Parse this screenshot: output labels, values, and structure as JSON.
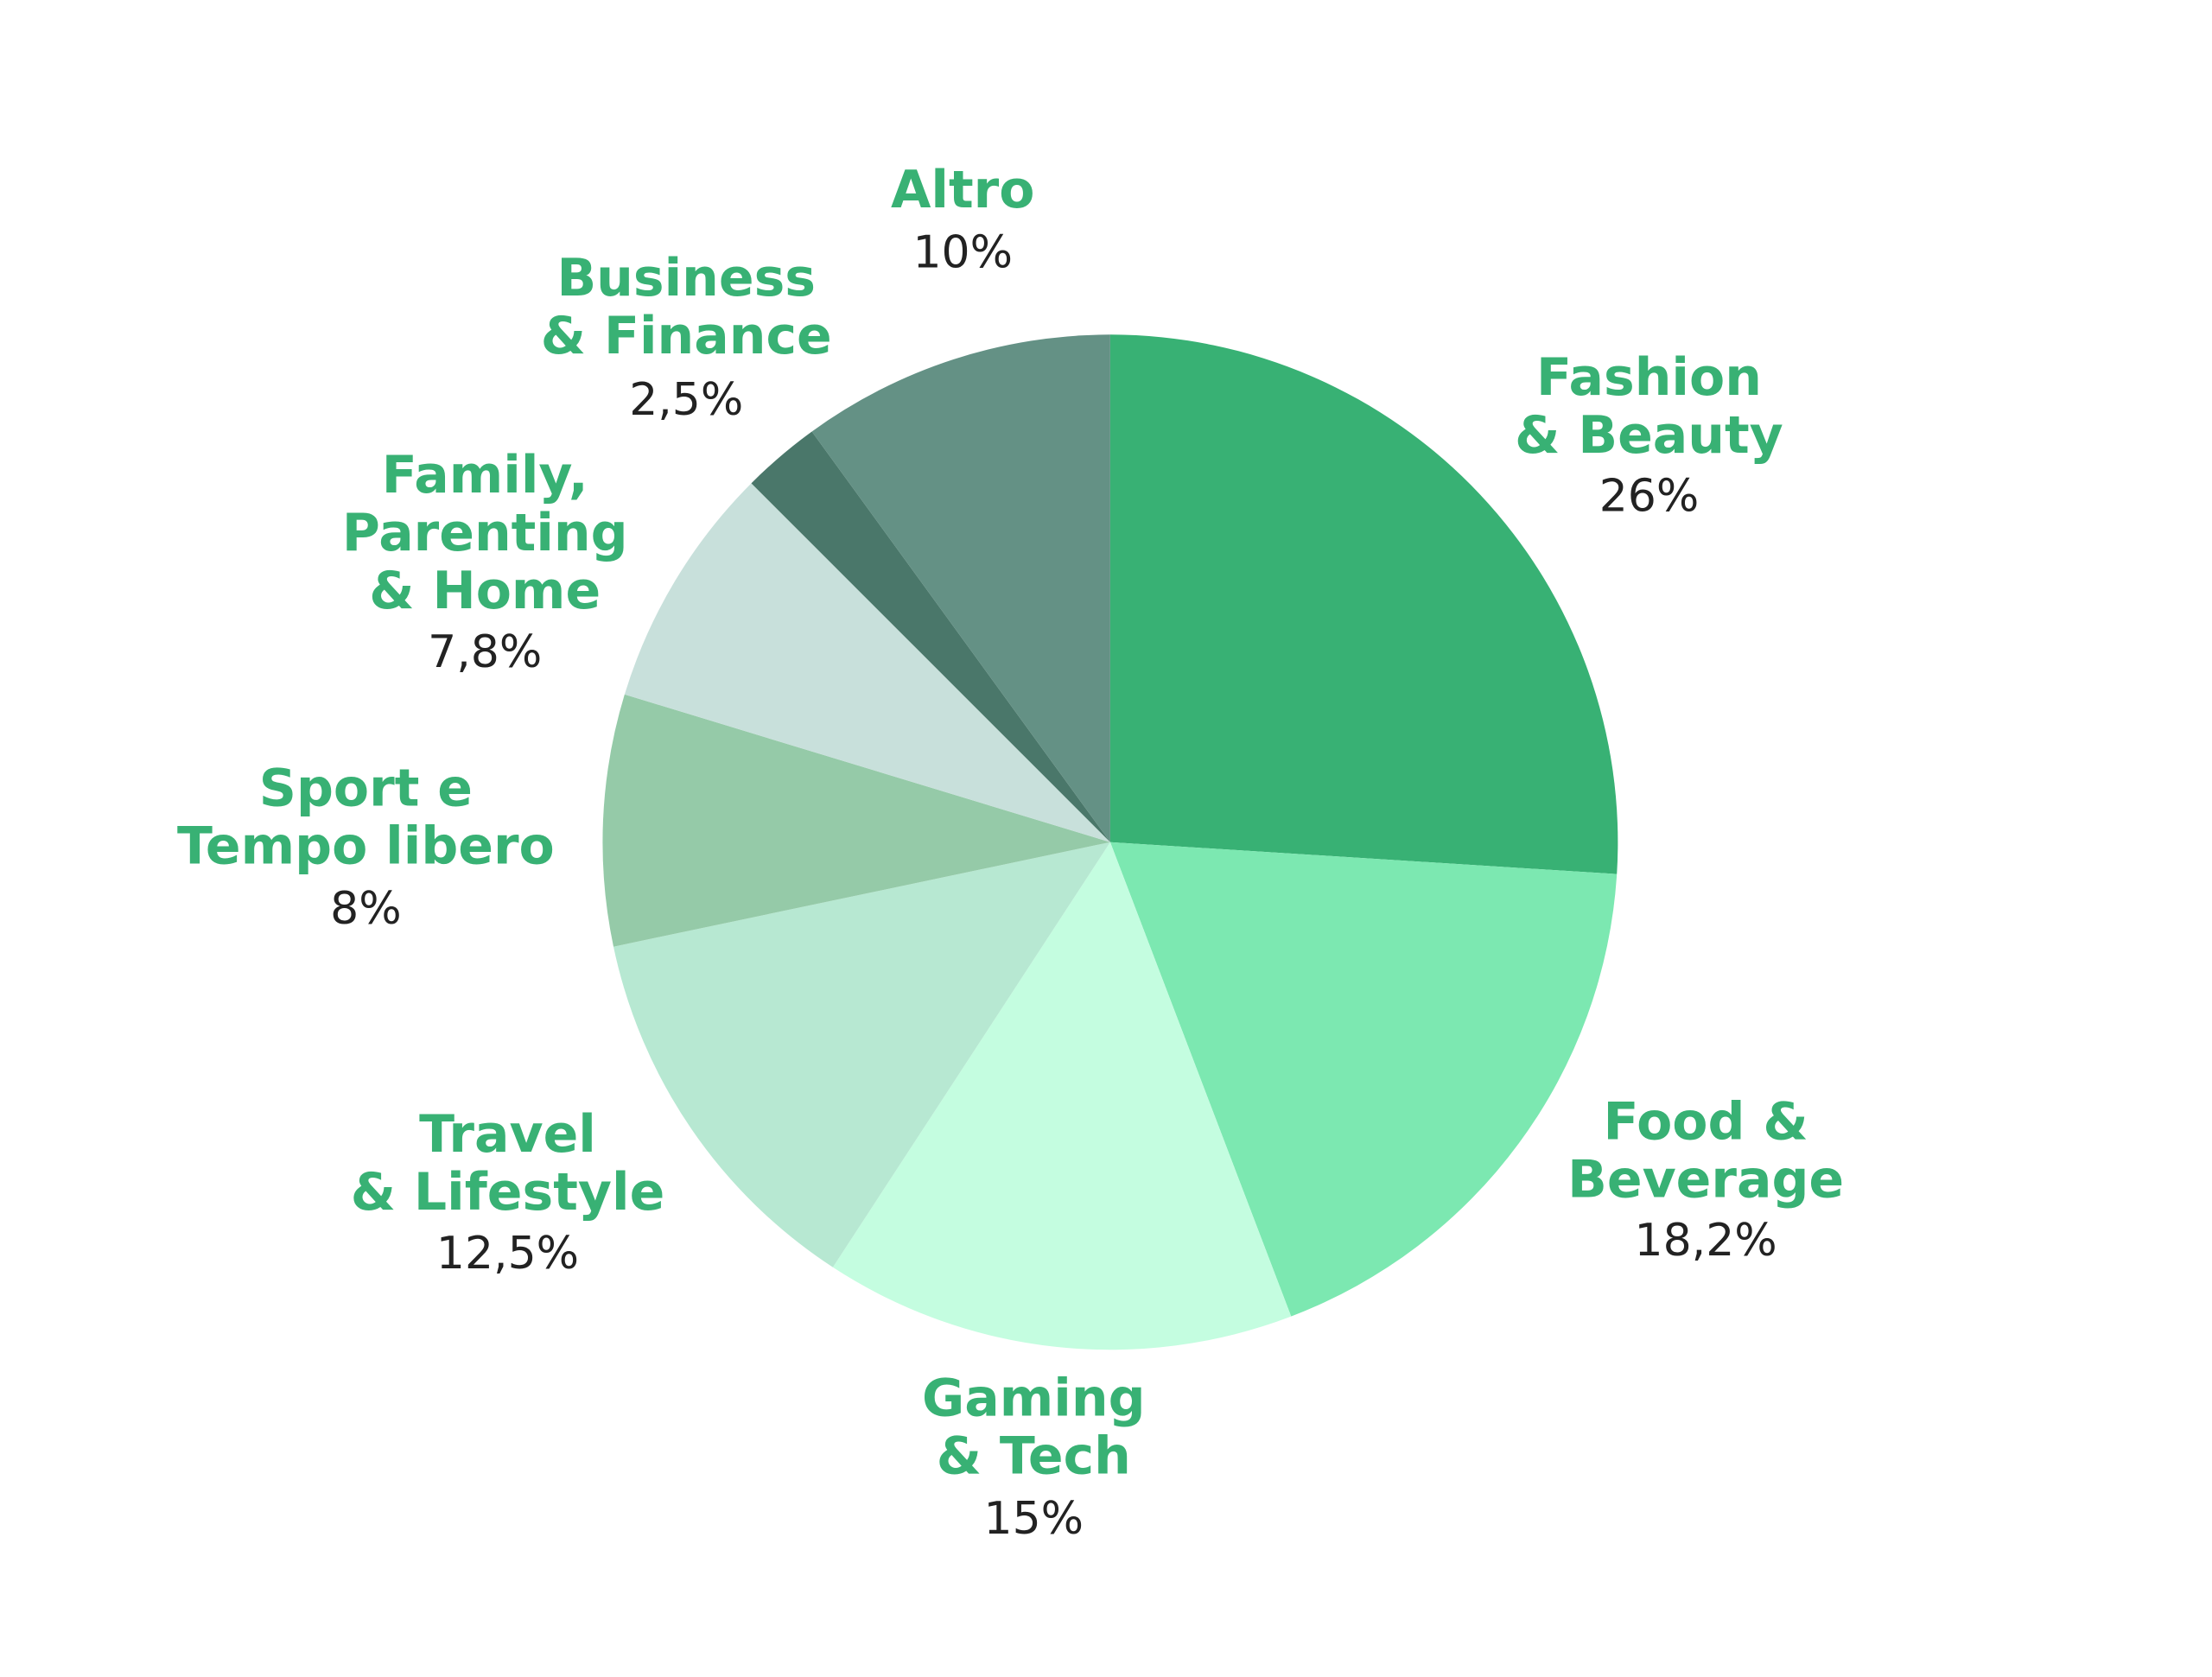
{
  "chart_data": {
    "type": "pie",
    "categories": [
      "Fashion\n& Beauty",
      "Food &\nBeverage",
      "Gaming\n& Tech",
      "Travel\n& Lifestyle",
      "Sport e\nTempo libero",
      "Family,\nParenting\n& Home",
      "Business\n& Finance",
      "Altro"
    ],
    "values": [
      26,
      18.2,
      15,
      12.5,
      8,
      7.8,
      2.5,
      10
    ],
    "value_labels": [
      "26%",
      "18,2%",
      "15%",
      "12,5%",
      "8%",
      "7,8%",
      "2,5%",
      "10%"
    ],
    "colors": [
      "#38b174",
      "#7ce8b1",
      "#c4fde0",
      "#b7e8d2",
      "#95caa8",
      "#c8e0db",
      "#4a776a",
      "#649185"
    ]
  }
}
